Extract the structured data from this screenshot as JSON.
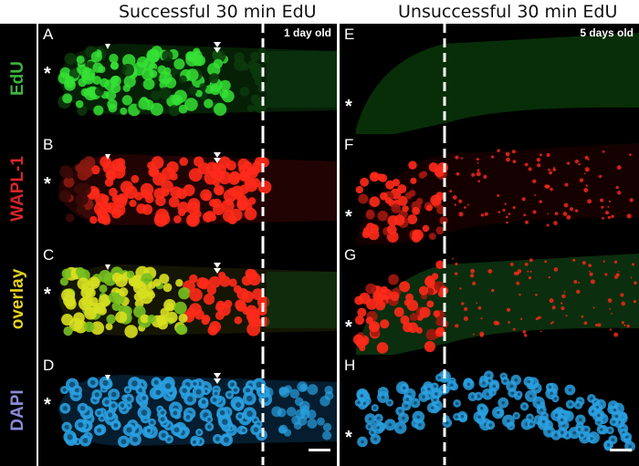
{
  "titles": {
    "left": "Successful 30 min EdU",
    "right": "Unsuccessful 30 min EdU"
  },
  "row_labels": [
    {
      "text": "EdU",
      "color": "#3cb43c"
    },
    {
      "text": "WAPL-1",
      "color": "#d8262a"
    },
    {
      "text": "overlay",
      "color": "#e6d21e"
    },
    {
      "text": "DAPI",
      "color": "#8a8ad8"
    }
  ],
  "left_panels": [
    "A",
    "B",
    "C",
    "D"
  ],
  "right_panels": [
    "E",
    "F",
    "G",
    "H"
  ],
  "asterisk": "*",
  "ages": {
    "left": "1 day old",
    "right": "5 days old"
  },
  "colors": {
    "edu": "#35e035",
    "wapl": "#ff2a1a",
    "overlay": "#d8e020",
    "dapi": "#2aa0e0"
  }
}
